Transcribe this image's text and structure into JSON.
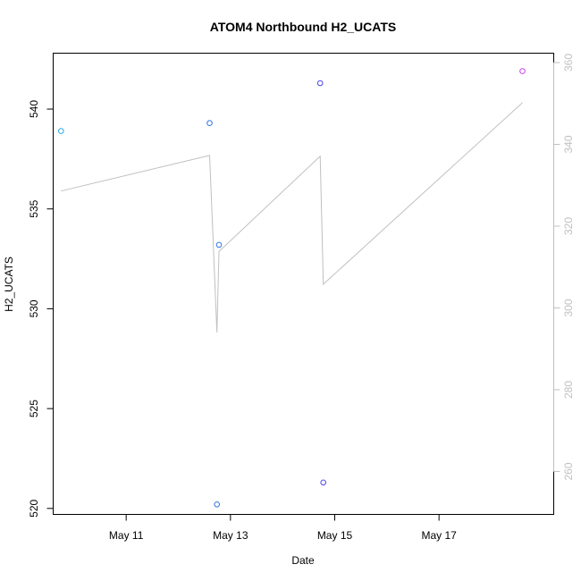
{
  "chart_data": {
    "type": "scatter",
    "title": "ATOM4 Northbound H2_UCATS",
    "xlabel": "Date",
    "ylabel": "H2_UCATS",
    "x_ticks": [
      "May 11",
      "May 13",
      "May 15",
      "May 17"
    ],
    "x_tick_values": [
      11,
      13,
      15,
      17
    ],
    "xlim": [
      9.6,
      19.2
    ],
    "ylim": [
      519.7,
      542.8
    ],
    "y_ticks": [
      520,
      525,
      530,
      535,
      540
    ],
    "y2lim": [
      249.5,
      362.3
    ],
    "y2_ticks": [
      260,
      280,
      300,
      320,
      340,
      360
    ],
    "grid": false,
    "points": [
      {
        "x": 9.75,
        "y": 538.9,
        "color": "#2aa7f0"
      },
      {
        "x": 12.6,
        "y": 539.3,
        "color": "#2f72e6"
      },
      {
        "x": 12.74,
        "y": 520.2,
        "color": "#2f72e6"
      },
      {
        "x": 12.78,
        "y": 533.2,
        "color": "#2f72e6"
      },
      {
        "x": 14.72,
        "y": 541.3,
        "color": "#4b45e6"
      },
      {
        "x": 14.78,
        "y": 521.3,
        "color": "#4b45e6"
      },
      {
        "x": 18.6,
        "y": 541.9,
        "color": "#c63ff0"
      }
    ],
    "line_series": {
      "axis": "right",
      "color": "#c0c0c0",
      "x": [
        9.75,
        12.6,
        12.74,
        12.78,
        14.72,
        14.78,
        18.6
      ],
      "y": [
        328.6,
        337.3,
        294.0,
        313.8,
        337.1,
        305.8,
        350.2
      ]
    }
  }
}
